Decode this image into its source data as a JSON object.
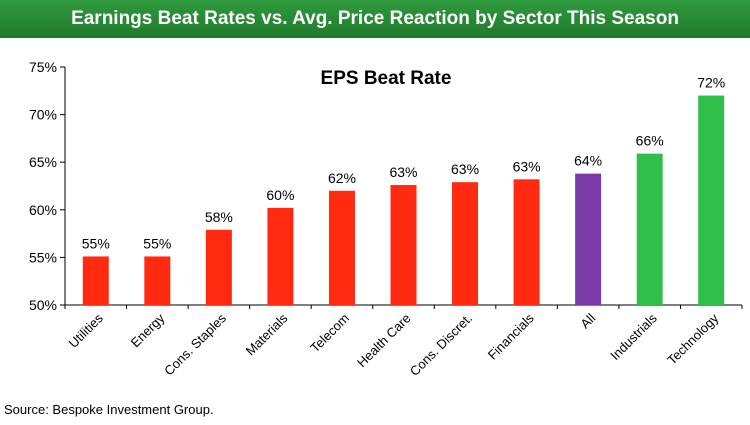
{
  "header": {
    "title": "Earnings Beat Rates vs. Avg. Price Reaction by Sector This Season"
  },
  "footer": {
    "source": "Source: Bespoke Investment Group."
  },
  "chart_data": {
    "type": "bar",
    "title": "EPS Beat Rate",
    "categories": [
      "Utilities",
      "Energy",
      "Cons. Staples",
      "Materials",
      "Telecom",
      "Health Care",
      "Cons. Discret.",
      "Financials",
      "All",
      "Industrials",
      "Technology"
    ],
    "values": [
      55.1,
      55.1,
      57.9,
      60.2,
      62.0,
      62.6,
      62.9,
      63.2,
      63.8,
      65.9,
      72.0
    ],
    "data_labels": [
      "55%",
      "55%",
      "58%",
      "60%",
      "62%",
      "63%",
      "63%",
      "63%",
      "64%",
      "66%",
      "72%"
    ],
    "bar_colors": [
      "#ff2a0f",
      "#ff2a0f",
      "#ff2a0f",
      "#ff2a0f",
      "#ff2a0f",
      "#ff2a0f",
      "#ff2a0f",
      "#ff2a0f",
      "#7b3aa6",
      "#2fbf4a",
      "#2fbf4a"
    ],
    "yticks": [
      50,
      55,
      60,
      65,
      70,
      75
    ],
    "ytick_labels": [
      "50%",
      "55%",
      "60%",
      "65%",
      "70%",
      "75%"
    ],
    "ylim": [
      50,
      75
    ],
    "xlabel": "",
    "ylabel": "",
    "grid": false,
    "legend": "none"
  }
}
